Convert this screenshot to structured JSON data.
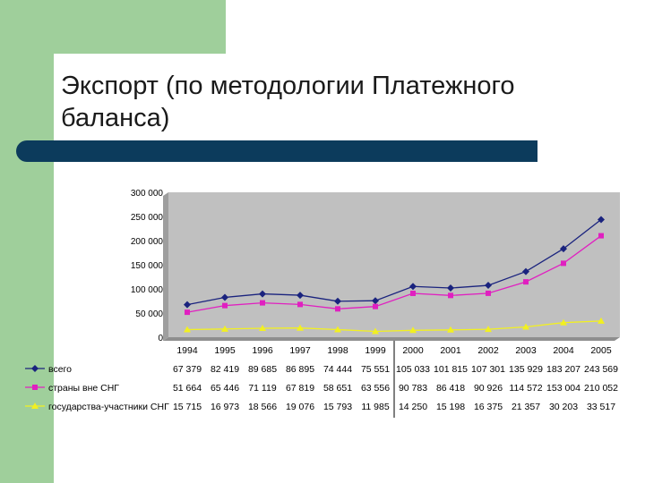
{
  "slide": {
    "title": "Экспорт (по методологии Платежного баланса)"
  },
  "chart_data": {
    "type": "line",
    "categories": [
      "1994",
      "1995",
      "1996",
      "1997",
      "1998",
      "1999",
      "2000",
      "2001",
      "2002",
      "2003",
      "2004",
      "2005"
    ],
    "ylim": [
      0,
      300000
    ],
    "yticks": [
      "300 000",
      "250 000",
      "200 000",
      "150 000",
      "100 000",
      "50 000",
      "0"
    ],
    "ytick_values": [
      300000,
      250000,
      200000,
      150000,
      100000,
      50000,
      0
    ],
    "legend_position": "bottom-left data table",
    "series": [
      {
        "name": "всего",
        "color": "#1a237e",
        "marker": "diamond",
        "values": [
          67379,
          82419,
          89685,
          86895,
          74444,
          75551,
          105033,
          101815,
          107301,
          135929,
          183207,
          243569
        ],
        "labels": [
          "67 379",
          "82 419",
          "89 685",
          "86 895",
          "74 444",
          "75 551",
          "105 033",
          "101 815",
          "107 301",
          "135 929",
          "183 207",
          "243 569"
        ]
      },
      {
        "name": "страны вне СНГ",
        "color": "#e020c0",
        "marker": "square",
        "values": [
          51664,
          65446,
          71119,
          67819,
          58651,
          63556,
          90783,
          86418,
          90926,
          114572,
          153004,
          210052
        ],
        "labels": [
          "51 664",
          "65 446",
          "71 119",
          "67 819",
          "58 651",
          "63 556",
          "90 783",
          "86 418",
          "90 926",
          "114 572",
          "153 004",
          "210 052"
        ]
      },
      {
        "name": "государства-участники СНГ",
        "color": "#f2f020",
        "marker": "triangle",
        "values": [
          15715,
          16973,
          18566,
          19076,
          15793,
          11985,
          14250,
          15198,
          16375,
          21357,
          30203,
          33517
        ],
        "labels": [
          "15 715",
          "16 973",
          "18 566",
          "19 076",
          "15 793",
          "11 985",
          "14 250",
          "15 198",
          "16 375",
          "21 357",
          "30 203",
          "33 517"
        ]
      }
    ]
  }
}
